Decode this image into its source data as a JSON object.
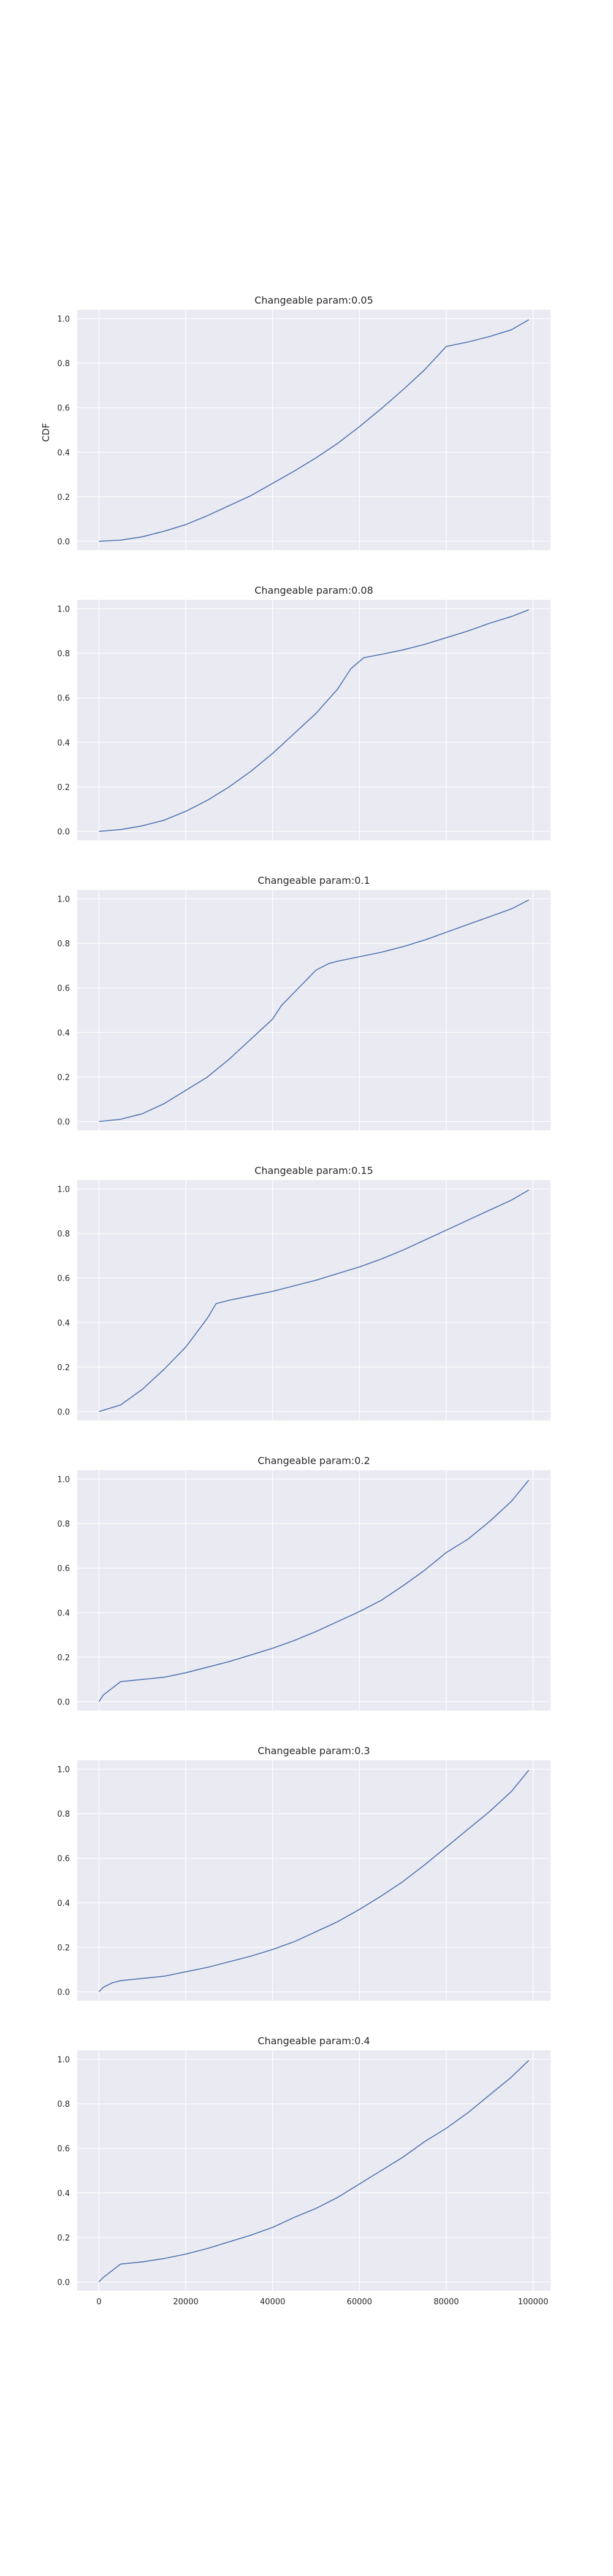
{
  "chart_data": [
    {
      "type": "line",
      "title": "Changeable param:0.05",
      "ylabel": "CDF",
      "xlim": [
        -5000,
        104000
      ],
      "ylim": [
        -0.04,
        1.04
      ],
      "xticks": [
        0,
        20000,
        40000,
        60000,
        80000,
        100000
      ],
      "xtick_labels_visible": false,
      "yticks": [
        "0.0",
        "0.2",
        "0.4",
        "0.6",
        "0.8",
        "1.0"
      ],
      "grid": true,
      "series": [
        {
          "color": "#4c72b0",
          "x": [
            0,
            5000,
            10000,
            15000,
            20000,
            25000,
            30000,
            35000,
            40000,
            45000,
            50000,
            55000,
            60000,
            65000,
            70000,
            75000,
            80000,
            85000,
            90000,
            95000,
            99000
          ],
          "y": [
            0.0,
            0.005,
            0.02,
            0.045,
            0.075,
            0.115,
            0.16,
            0.205,
            0.26,
            0.315,
            0.375,
            0.44,
            0.515,
            0.595,
            0.68,
            0.77,
            0.875,
            0.895,
            0.92,
            0.95,
            0.995
          ]
        }
      ]
    },
    {
      "type": "line",
      "title": "Changeable param:0.08",
      "ylabel": "",
      "xlim": [
        -5000,
        104000
      ],
      "ylim": [
        -0.04,
        1.04
      ],
      "xticks": [
        0,
        20000,
        40000,
        60000,
        80000,
        100000
      ],
      "xtick_labels_visible": false,
      "yticks": [
        "0.0",
        "0.2",
        "0.4",
        "0.6",
        "0.8",
        "1.0"
      ],
      "grid": true,
      "series": [
        {
          "color": "#4c72b0",
          "x": [
            0,
            5000,
            10000,
            15000,
            20000,
            25000,
            30000,
            35000,
            40000,
            45000,
            50000,
            55000,
            58000,
            61000,
            65000,
            70000,
            75000,
            80000,
            85000,
            90000,
            95000,
            99000
          ],
          "y": [
            0.0,
            0.008,
            0.025,
            0.05,
            0.09,
            0.14,
            0.2,
            0.27,
            0.35,
            0.44,
            0.53,
            0.64,
            0.73,
            0.78,
            0.795,
            0.815,
            0.84,
            0.87,
            0.9,
            0.935,
            0.965,
            0.995
          ]
        }
      ]
    },
    {
      "type": "line",
      "title": "Changeable param:0.1",
      "ylabel": "",
      "xlim": [
        -5000,
        104000
      ],
      "ylim": [
        -0.04,
        1.04
      ],
      "xticks": [
        0,
        20000,
        40000,
        60000,
        80000,
        100000
      ],
      "xtick_labels_visible": false,
      "yticks": [
        "0.0",
        "0.2",
        "0.4",
        "0.6",
        "0.8",
        "1.0"
      ],
      "grid": true,
      "series": [
        {
          "color": "#4c72b0",
          "x": [
            0,
            5000,
            10000,
            15000,
            20000,
            25000,
            30000,
            35000,
            40000,
            42000,
            45000,
            50000,
            53000,
            55000,
            60000,
            65000,
            70000,
            75000,
            80000,
            85000,
            90000,
            95000,
            99000
          ],
          "y": [
            0.0,
            0.01,
            0.035,
            0.08,
            0.14,
            0.2,
            0.28,
            0.37,
            0.46,
            0.52,
            0.58,
            0.68,
            0.71,
            0.72,
            0.74,
            0.76,
            0.785,
            0.815,
            0.85,
            0.885,
            0.92,
            0.955,
            0.995
          ]
        }
      ]
    },
    {
      "type": "line",
      "title": "Changeable param:0.15",
      "ylabel": "",
      "xlim": [
        -5000,
        104000
      ],
      "ylim": [
        -0.04,
        1.04
      ],
      "xticks": [
        0,
        20000,
        40000,
        60000,
        80000,
        100000
      ],
      "xtick_labels_visible": false,
      "yticks": [
        "0.0",
        "0.2",
        "0.4",
        "0.6",
        "0.8",
        "1.0"
      ],
      "grid": true,
      "series": [
        {
          "color": "#4c72b0",
          "x": [
            0,
            5000,
            10000,
            15000,
            20000,
            25000,
            27000,
            30000,
            35000,
            40000,
            45000,
            50000,
            55000,
            60000,
            65000,
            70000,
            75000,
            80000,
            85000,
            90000,
            95000,
            99000
          ],
          "y": [
            0.0,
            0.03,
            0.1,
            0.19,
            0.29,
            0.42,
            0.485,
            0.5,
            0.52,
            0.54,
            0.565,
            0.59,
            0.62,
            0.65,
            0.685,
            0.725,
            0.77,
            0.815,
            0.86,
            0.905,
            0.95,
            0.995
          ]
        }
      ]
    },
    {
      "type": "line",
      "title": "Changeable param:0.2",
      "ylabel": "",
      "xlim": [
        -5000,
        104000
      ],
      "ylim": [
        -0.04,
        1.04
      ],
      "xticks": [
        0,
        20000,
        40000,
        60000,
        80000,
        100000
      ],
      "xtick_labels_visible": false,
      "yticks": [
        "0.0",
        "0.2",
        "0.4",
        "0.6",
        "0.8",
        "1.0"
      ],
      "grid": true,
      "series": [
        {
          "color": "#4c72b0",
          "x": [
            0,
            1000,
            3000,
            5000,
            10000,
            15000,
            20000,
            25000,
            30000,
            35000,
            40000,
            45000,
            50000,
            55000,
            60000,
            65000,
            70000,
            75000,
            80000,
            85000,
            90000,
            95000,
            99000
          ],
          "y": [
            0.0,
            0.03,
            0.06,
            0.09,
            0.1,
            0.11,
            0.13,
            0.155,
            0.18,
            0.21,
            0.24,
            0.275,
            0.315,
            0.36,
            0.405,
            0.455,
            0.52,
            0.59,
            0.67,
            0.73,
            0.81,
            0.9,
            0.995
          ]
        }
      ]
    },
    {
      "type": "line",
      "title": "Changeable param:0.3",
      "ylabel": "",
      "xlim": [
        -5000,
        104000
      ],
      "ylim": [
        -0.04,
        1.04
      ],
      "xticks": [
        0,
        20000,
        40000,
        60000,
        80000,
        100000
      ],
      "xtick_labels_visible": false,
      "yticks": [
        "0.0",
        "0.2",
        "0.4",
        "0.6",
        "0.8",
        "1.0"
      ],
      "grid": true,
      "series": [
        {
          "color": "#4c72b0",
          "x": [
            0,
            1000,
            3000,
            5000,
            10000,
            15000,
            20000,
            25000,
            30000,
            35000,
            40000,
            45000,
            50000,
            55000,
            60000,
            65000,
            70000,
            75000,
            80000,
            85000,
            90000,
            95000,
            99000
          ],
          "y": [
            0.0,
            0.02,
            0.04,
            0.05,
            0.06,
            0.07,
            0.09,
            0.11,
            0.135,
            0.16,
            0.19,
            0.225,
            0.27,
            0.315,
            0.37,
            0.43,
            0.495,
            0.57,
            0.65,
            0.73,
            0.81,
            0.9,
            0.995
          ]
        }
      ]
    },
    {
      "type": "line",
      "title": "Changeable param:0.4",
      "ylabel": "",
      "xlim": [
        -5000,
        104000
      ],
      "ylim": [
        -0.04,
        1.04
      ],
      "xticks": [
        0,
        20000,
        40000,
        60000,
        80000,
        100000
      ],
      "xtick_labels_visible": true,
      "xtick_labels": [
        "0",
        "20000",
        "40000",
        "60000",
        "80000",
        "100000"
      ],
      "yticks": [
        "0.0",
        "0.2",
        "0.4",
        "0.6",
        "0.8",
        "1.0"
      ],
      "grid": true,
      "series": [
        {
          "color": "#4c72b0",
          "x": [
            0,
            1000,
            3000,
            5000,
            10000,
            15000,
            20000,
            25000,
            30000,
            35000,
            40000,
            45000,
            50000,
            55000,
            60000,
            65000,
            70000,
            75000,
            80000,
            85000,
            90000,
            95000,
            99000
          ],
          "y": [
            0.0,
            0.02,
            0.05,
            0.08,
            0.09,
            0.105,
            0.125,
            0.15,
            0.18,
            0.21,
            0.245,
            0.29,
            0.33,
            0.38,
            0.44,
            0.5,
            0.56,
            0.63,
            0.69,
            0.76,
            0.84,
            0.92,
            0.995
          ]
        }
      ]
    }
  ]
}
